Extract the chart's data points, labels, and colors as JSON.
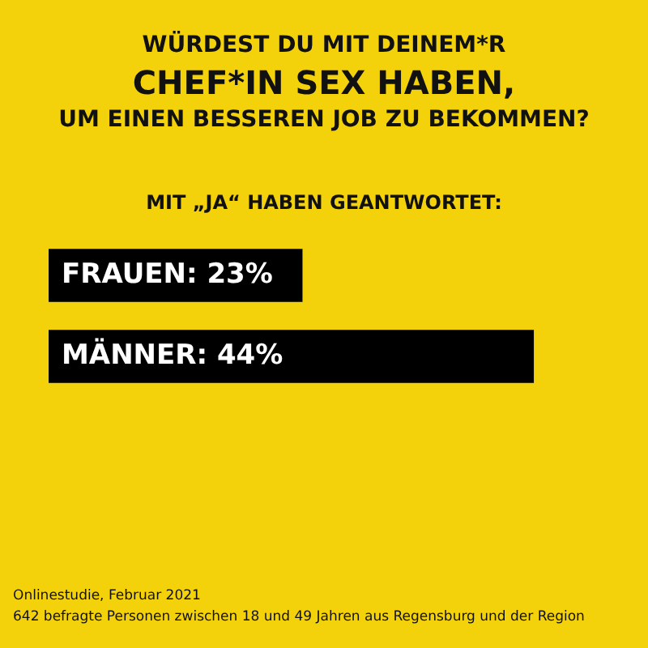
{
  "chart_data": {
    "type": "bar",
    "orientation": "horizontal",
    "title": "WÜRDEST DU MIT DEINEM*R\nCHEF*IN SEX HABEN,\nUM EINEN BESSEREN JOB ZU BEKOMMEN?",
    "subtitle": "MIT „JA“ HABEN GEANTWORTET:",
    "categories": [
      null,
      null
    ],
    "values": [
      23,
      44
    ],
    "value_labels": [
      "FRAUEN: 23%",
      "MÄNNER: 44%"
    ],
    "color": "#000000",
    "tick_labels": false,
    "annotations": [
      "Onlinestudie, Februar 2021",
      "642 befragte Personen zwischen 18 und 49 Jahren aus Regensburg und der Region"
    ]
  }
}
